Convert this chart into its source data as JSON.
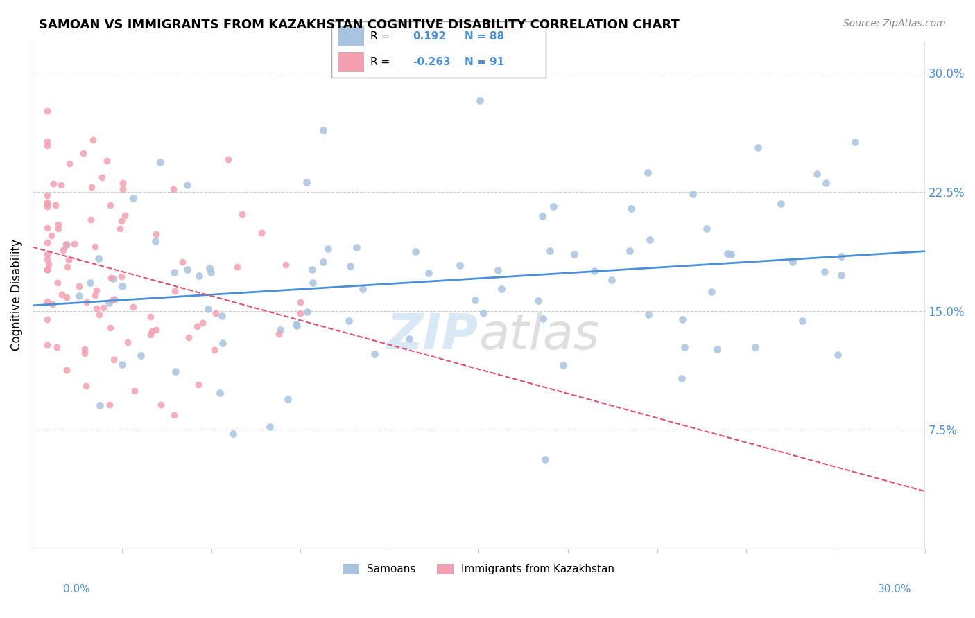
{
  "title": "SAMOAN VS IMMIGRANTS FROM KAZAKHSTAN COGNITIVE DISABILITY CORRELATION CHART",
  "source": "Source: ZipAtlas.com",
  "ylabel": "Cognitive Disability",
  "right_yticks": [
    0.075,
    0.15,
    0.225,
    0.3
  ],
  "right_yticklabels": [
    "7.5%",
    "15.0%",
    "22.5%",
    "30.0%"
  ],
  "xlim": [
    0.0,
    0.3
  ],
  "ylim": [
    0.0,
    0.32
  ],
  "blue_color": "#a8c4e0",
  "pink_color": "#f4a0b0",
  "blue_line_color": "#4a90d9",
  "pink_line_color": "#e05070",
  "legend_R1": "R =  0.192",
  "legend_N1": "N = 88",
  "legend_R2": "R = -0.263",
  "legend_N2": "N = 91",
  "n_blue": 88,
  "n_pink": 91
}
